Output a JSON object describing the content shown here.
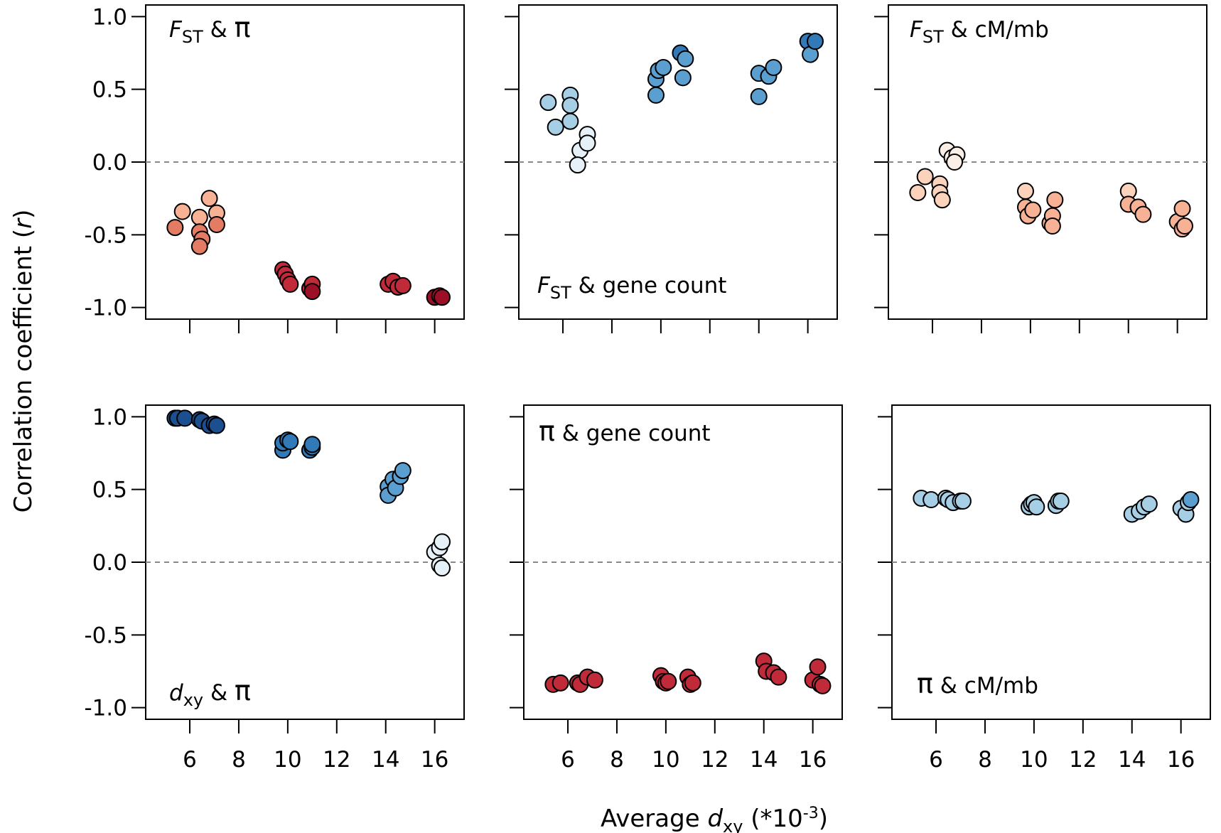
{
  "figure": {
    "ylabel": "Correlation coefficient (r)",
    "ylabel_main": "Correlation coefficient (",
    "ylabel_var": "r",
    "ylabel_close": ")",
    "xlabel_main": "Average ",
    "xlabel_var": "d",
    "xlabel_sub": "xy",
    "xlabel_suffix": " (*10",
    "xlabel_sup": "-3",
    "xlabel_close": ")"
  },
  "colors": {
    "dark_red": "#9b1026",
    "red": "#c12b39",
    "salmon": "#e47b63",
    "light_salmon": "#f7b195",
    "pale_salmon": "#fbd3bd",
    "pale_blue": "#e6f0f7",
    "light_blue": "#a6cfe6",
    "mid_blue": "#5a9fcf",
    "blue": "#3279b8",
    "dark_blue": "#1c4f8f",
    "zero_line": "#888888"
  },
  "chart_data": [
    {
      "type": "scatter",
      "label_var": "F",
      "label_sub": "ST",
      "label_rest": " & ",
      "label_sym": "π",
      "xlim": [
        4.2,
        17.2
      ],
      "ylim": [
        -1.08,
        1.08
      ],
      "xticks": [
        "6",
        "8",
        "10",
        "12",
        "14",
        "16"
      ],
      "yticks": [
        "1.0",
        "0.5",
        "0.0",
        "-0.5",
        "-1.0"
      ],
      "points": [
        {
          "x": 5.4,
          "y": -0.45,
          "c": "salmon"
        },
        {
          "x": 5.7,
          "y": -0.34,
          "c": "light_salmon"
        },
        {
          "x": 6.4,
          "y": -0.38,
          "c": "light_salmon"
        },
        {
          "x": 6.8,
          "y": -0.25,
          "c": "light_salmon"
        },
        {
          "x": 7.1,
          "y": -0.35,
          "c": "light_salmon"
        },
        {
          "x": 6.4,
          "y": -0.48,
          "c": "salmon"
        },
        {
          "x": 6.5,
          "y": -0.53,
          "c": "salmon"
        },
        {
          "x": 7.1,
          "y": -0.43,
          "c": "salmon"
        },
        {
          "x": 6.4,
          "y": -0.58,
          "c": "salmon"
        },
        {
          "x": 9.8,
          "y": -0.74,
          "c": "red"
        },
        {
          "x": 9.9,
          "y": -0.77,
          "c": "red"
        },
        {
          "x": 10.0,
          "y": -0.81,
          "c": "red"
        },
        {
          "x": 10.1,
          "y": -0.84,
          "c": "red"
        },
        {
          "x": 10.9,
          "y": -0.87,
          "c": "red"
        },
        {
          "x": 11.0,
          "y": -0.84,
          "c": "red"
        },
        {
          "x": 11.0,
          "y": -0.89,
          "c": "dark_red"
        },
        {
          "x": 14.1,
          "y": -0.84,
          "c": "red"
        },
        {
          "x": 14.3,
          "y": -0.82,
          "c": "red"
        },
        {
          "x": 14.5,
          "y": -0.86,
          "c": "red"
        },
        {
          "x": 14.7,
          "y": -0.85,
          "c": "red"
        },
        {
          "x": 16.0,
          "y": -0.93,
          "c": "dark_red"
        },
        {
          "x": 16.2,
          "y": -0.92,
          "c": "dark_red"
        },
        {
          "x": 16.3,
          "y": -0.93,
          "c": "dark_red"
        }
      ]
    },
    {
      "type": "scatter",
      "label_var": "F",
      "label_sub": "ST",
      "label_rest": " & gene count",
      "label_sym": "",
      "xlim": [
        4.2,
        17.2
      ],
      "ylim": [
        -1.08,
        1.08
      ],
      "xticks": [
        "6",
        "8",
        "10",
        "12",
        "14",
        "16"
      ],
      "yticks": [
        "1.0",
        "0.5",
        "0.0",
        "-0.5",
        "-1.0"
      ],
      "points": [
        {
          "x": 5.4,
          "y": 0.41,
          "c": "light_blue"
        },
        {
          "x": 5.7,
          "y": 0.24,
          "c": "light_blue"
        },
        {
          "x": 6.3,
          "y": 0.46,
          "c": "light_blue"
        },
        {
          "x": 6.3,
          "y": 0.39,
          "c": "light_blue"
        },
        {
          "x": 6.3,
          "y": 0.28,
          "c": "light_blue"
        },
        {
          "x": 6.7,
          "y": 0.08,
          "c": "pale_blue"
        },
        {
          "x": 6.6,
          "y": -0.02,
          "c": "pale_blue"
        },
        {
          "x": 7.0,
          "y": 0.19,
          "c": "pale_blue"
        },
        {
          "x": 7.0,
          "y": 0.13,
          "c": "pale_blue"
        },
        {
          "x": 9.8,
          "y": 0.46,
          "c": "mid_blue"
        },
        {
          "x": 9.8,
          "y": 0.57,
          "c": "mid_blue"
        },
        {
          "x": 9.9,
          "y": 0.63,
          "c": "mid_blue"
        },
        {
          "x": 10.1,
          "y": 0.65,
          "c": "mid_blue"
        },
        {
          "x": 10.8,
          "y": 0.75,
          "c": "blue"
        },
        {
          "x": 10.9,
          "y": 0.58,
          "c": "mid_blue"
        },
        {
          "x": 11.0,
          "y": 0.71,
          "c": "mid_blue"
        },
        {
          "x": 14.0,
          "y": 0.45,
          "c": "mid_blue"
        },
        {
          "x": 14.0,
          "y": 0.61,
          "c": "mid_blue"
        },
        {
          "x": 14.4,
          "y": 0.59,
          "c": "mid_blue"
        },
        {
          "x": 14.6,
          "y": 0.65,
          "c": "mid_blue"
        },
        {
          "x": 16.0,
          "y": 0.83,
          "c": "blue"
        },
        {
          "x": 16.1,
          "y": 0.74,
          "c": "mid_blue"
        },
        {
          "x": 16.3,
          "y": 0.83,
          "c": "blue"
        }
      ]
    },
    {
      "type": "scatter",
      "label_var": "F",
      "label_sub": "ST",
      "label_rest": " & cM/mb",
      "label_sym": "",
      "xlim": [
        4.2,
        17.2
      ],
      "ylim": [
        -1.08,
        1.08
      ],
      "xticks": [
        "6",
        "8",
        "10",
        "12",
        "14",
        "16"
      ],
      "yticks": [
        "1.0",
        "0.5",
        "0.0",
        "-0.5",
        "-1.0"
      ],
      "points": [
        {
          "x": 5.4,
          "y": -0.21,
          "c": "pale_salmon"
        },
        {
          "x": 5.7,
          "y": -0.1,
          "c": "pale_salmon"
        },
        {
          "x": 6.3,
          "y": -0.15,
          "c": "pale_salmon"
        },
        {
          "x": 6.3,
          "y": -0.21,
          "c": "pale_salmon"
        },
        {
          "x": 6.4,
          "y": -0.26,
          "c": "pale_salmon"
        },
        {
          "x": 6.6,
          "y": 0.08,
          "c": "#fbeee6"
        },
        {
          "x": 6.8,
          "y": 0.03,
          "c": "#fbeee6"
        },
        {
          "x": 7.0,
          "y": 0.05,
          "c": "#fbeee6"
        },
        {
          "x": 6.9,
          "y": 0.0,
          "c": "#fbeee6"
        },
        {
          "x": 9.8,
          "y": -0.2,
          "c": "pale_salmon"
        },
        {
          "x": 9.8,
          "y": -0.31,
          "c": "light_salmon"
        },
        {
          "x": 9.9,
          "y": -0.37,
          "c": "light_salmon"
        },
        {
          "x": 10.1,
          "y": -0.33,
          "c": "light_salmon"
        },
        {
          "x": 10.8,
          "y": -0.42,
          "c": "light_salmon"
        },
        {
          "x": 10.9,
          "y": -0.37,
          "c": "light_salmon"
        },
        {
          "x": 11.0,
          "y": -0.26,
          "c": "light_salmon"
        },
        {
          "x": 10.9,
          "y": -0.44,
          "c": "light_salmon"
        },
        {
          "x": 14.0,
          "y": -0.2,
          "c": "pale_salmon"
        },
        {
          "x": 14.0,
          "y": -0.29,
          "c": "light_salmon"
        },
        {
          "x": 14.4,
          "y": -0.31,
          "c": "light_salmon"
        },
        {
          "x": 14.6,
          "y": -0.36,
          "c": "light_salmon"
        },
        {
          "x": 16.0,
          "y": -0.41,
          "c": "light_salmon"
        },
        {
          "x": 16.2,
          "y": -0.32,
          "c": "light_salmon"
        },
        {
          "x": 16.2,
          "y": -0.46,
          "c": "light_salmon"
        },
        {
          "x": 16.3,
          "y": -0.44,
          "c": "light_salmon"
        }
      ]
    },
    {
      "type": "scatter",
      "label_var": "d",
      "label_sub": "xy",
      "label_rest": " & ",
      "label_sym": "π",
      "xlim": [
        4.2,
        17.2
      ],
      "ylim": [
        -1.08,
        1.08
      ],
      "xticks": [
        "6",
        "8",
        "10",
        "12",
        "14",
        "16"
      ],
      "yticks": [
        "1.0",
        "0.5",
        "0.0",
        "-0.5",
        "-1.0"
      ],
      "points": [
        {
          "x": 5.4,
          "y": 0.99,
          "c": "dark_blue"
        },
        {
          "x": 5.5,
          "y": 0.99,
          "c": "dark_blue"
        },
        {
          "x": 5.8,
          "y": 0.99,
          "c": "dark_blue"
        },
        {
          "x": 6.4,
          "y": 0.98,
          "c": "dark_blue"
        },
        {
          "x": 6.5,
          "y": 0.97,
          "c": "dark_blue"
        },
        {
          "x": 6.8,
          "y": 0.94,
          "c": "dark_blue"
        },
        {
          "x": 7.0,
          "y": 0.95,
          "c": "dark_blue"
        },
        {
          "x": 7.1,
          "y": 0.94,
          "c": "dark_blue"
        },
        {
          "x": 9.8,
          "y": 0.77,
          "c": "blue"
        },
        {
          "x": 9.8,
          "y": 0.82,
          "c": "blue"
        },
        {
          "x": 10.0,
          "y": 0.84,
          "c": "blue"
        },
        {
          "x": 10.1,
          "y": 0.83,
          "c": "blue"
        },
        {
          "x": 10.9,
          "y": 0.77,
          "c": "blue"
        },
        {
          "x": 11.0,
          "y": 0.79,
          "c": "blue"
        },
        {
          "x": 11.0,
          "y": 0.81,
          "c": "blue"
        },
        {
          "x": 14.1,
          "y": 0.52,
          "c": "mid_blue"
        },
        {
          "x": 14.1,
          "y": 0.46,
          "c": "mid_blue"
        },
        {
          "x": 14.3,
          "y": 0.57,
          "c": "mid_blue"
        },
        {
          "x": 14.4,
          "y": 0.51,
          "c": "mid_blue"
        },
        {
          "x": 14.6,
          "y": 0.59,
          "c": "mid_blue"
        },
        {
          "x": 14.7,
          "y": 0.63,
          "c": "mid_blue"
        },
        {
          "x": 16.0,
          "y": 0.07,
          "c": "pale_blue"
        },
        {
          "x": 16.2,
          "y": 0.1,
          "c": "pale_blue"
        },
        {
          "x": 16.3,
          "y": 0.14,
          "c": "pale_blue"
        },
        {
          "x": 16.2,
          "y": -0.02,
          "c": "pale_blue"
        },
        {
          "x": 16.3,
          "y": -0.04,
          "c": "pale_blue"
        }
      ]
    },
    {
      "type": "scatter",
      "label_var": "",
      "label_sub": "",
      "label_rest": " & gene count",
      "label_sym": "π",
      "xlim": [
        4.2,
        17.2
      ],
      "ylim": [
        -1.08,
        1.08
      ],
      "xticks": [
        "6",
        "8",
        "10",
        "12",
        "14",
        "16"
      ],
      "yticks": [
        "1.0",
        "0.5",
        "0.0",
        "-0.5",
        "-1.0"
      ],
      "points": [
        {
          "x": 5.4,
          "y": -0.84,
          "c": "red"
        },
        {
          "x": 5.7,
          "y": -0.83,
          "c": "red"
        },
        {
          "x": 6.4,
          "y": -0.83,
          "c": "red"
        },
        {
          "x": 6.5,
          "y": -0.84,
          "c": "red"
        },
        {
          "x": 6.8,
          "y": -0.79,
          "c": "red"
        },
        {
          "x": 7.1,
          "y": -0.81,
          "c": "red"
        },
        {
          "x": 9.8,
          "y": -0.78,
          "c": "red"
        },
        {
          "x": 9.9,
          "y": -0.82,
          "c": "red"
        },
        {
          "x": 10.0,
          "y": -0.83,
          "c": "red"
        },
        {
          "x": 10.1,
          "y": -0.82,
          "c": "red"
        },
        {
          "x": 10.9,
          "y": -0.79,
          "c": "red"
        },
        {
          "x": 11.0,
          "y": -0.84,
          "c": "red"
        },
        {
          "x": 11.1,
          "y": -0.83,
          "c": "red"
        },
        {
          "x": 14.0,
          "y": -0.68,
          "c": "red"
        },
        {
          "x": 14.1,
          "y": -0.75,
          "c": "red"
        },
        {
          "x": 14.4,
          "y": -0.76,
          "c": "red"
        },
        {
          "x": 14.6,
          "y": -0.79,
          "c": "red"
        },
        {
          "x": 16.0,
          "y": -0.81,
          "c": "red"
        },
        {
          "x": 16.2,
          "y": -0.72,
          "c": "red"
        },
        {
          "x": 16.3,
          "y": -0.84,
          "c": "red"
        },
        {
          "x": 16.4,
          "y": -0.85,
          "c": "red"
        }
      ]
    },
    {
      "type": "scatter",
      "label_var": "",
      "label_sub": "",
      "label_rest": " & cM/mb",
      "label_sym": "π",
      "xlim": [
        4.2,
        17.2
      ],
      "ylim": [
        -1.08,
        1.08
      ],
      "xticks": [
        "6",
        "8",
        "10",
        "12",
        "14",
        "16"
      ],
      "yticks": [
        "1.0",
        "0.5",
        "0.0",
        "-0.5",
        "-1.0"
      ],
      "points": [
        {
          "x": 5.4,
          "y": 0.44,
          "c": "light_blue"
        },
        {
          "x": 5.8,
          "y": 0.43,
          "c": "light_blue"
        },
        {
          "x": 6.4,
          "y": 0.44,
          "c": "light_blue"
        },
        {
          "x": 6.5,
          "y": 0.43,
          "c": "light_blue"
        },
        {
          "x": 6.7,
          "y": 0.41,
          "c": "light_blue"
        },
        {
          "x": 7.0,
          "y": 0.42,
          "c": "light_blue"
        },
        {
          "x": 7.1,
          "y": 0.42,
          "c": "light_blue"
        },
        {
          "x": 9.8,
          "y": 0.38,
          "c": "light_blue"
        },
        {
          "x": 9.9,
          "y": 0.4,
          "c": "light_blue"
        },
        {
          "x": 10.0,
          "y": 0.41,
          "c": "light_blue"
        },
        {
          "x": 10.1,
          "y": 0.38,
          "c": "light_blue"
        },
        {
          "x": 10.9,
          "y": 0.39,
          "c": "light_blue"
        },
        {
          "x": 11.0,
          "y": 0.42,
          "c": "light_blue"
        },
        {
          "x": 11.1,
          "y": 0.42,
          "c": "light_blue"
        },
        {
          "x": 14.0,
          "y": 0.33,
          "c": "light_blue"
        },
        {
          "x": 14.3,
          "y": 0.35,
          "c": "light_blue"
        },
        {
          "x": 14.5,
          "y": 0.38,
          "c": "light_blue"
        },
        {
          "x": 14.7,
          "y": 0.4,
          "c": "light_blue"
        },
        {
          "x": 16.0,
          "y": 0.37,
          "c": "light_blue"
        },
        {
          "x": 16.2,
          "y": 0.33,
          "c": "light_blue"
        },
        {
          "x": 16.3,
          "y": 0.41,
          "c": "light_blue"
        },
        {
          "x": 16.4,
          "y": 0.43,
          "c": "mid_blue"
        }
      ]
    }
  ]
}
